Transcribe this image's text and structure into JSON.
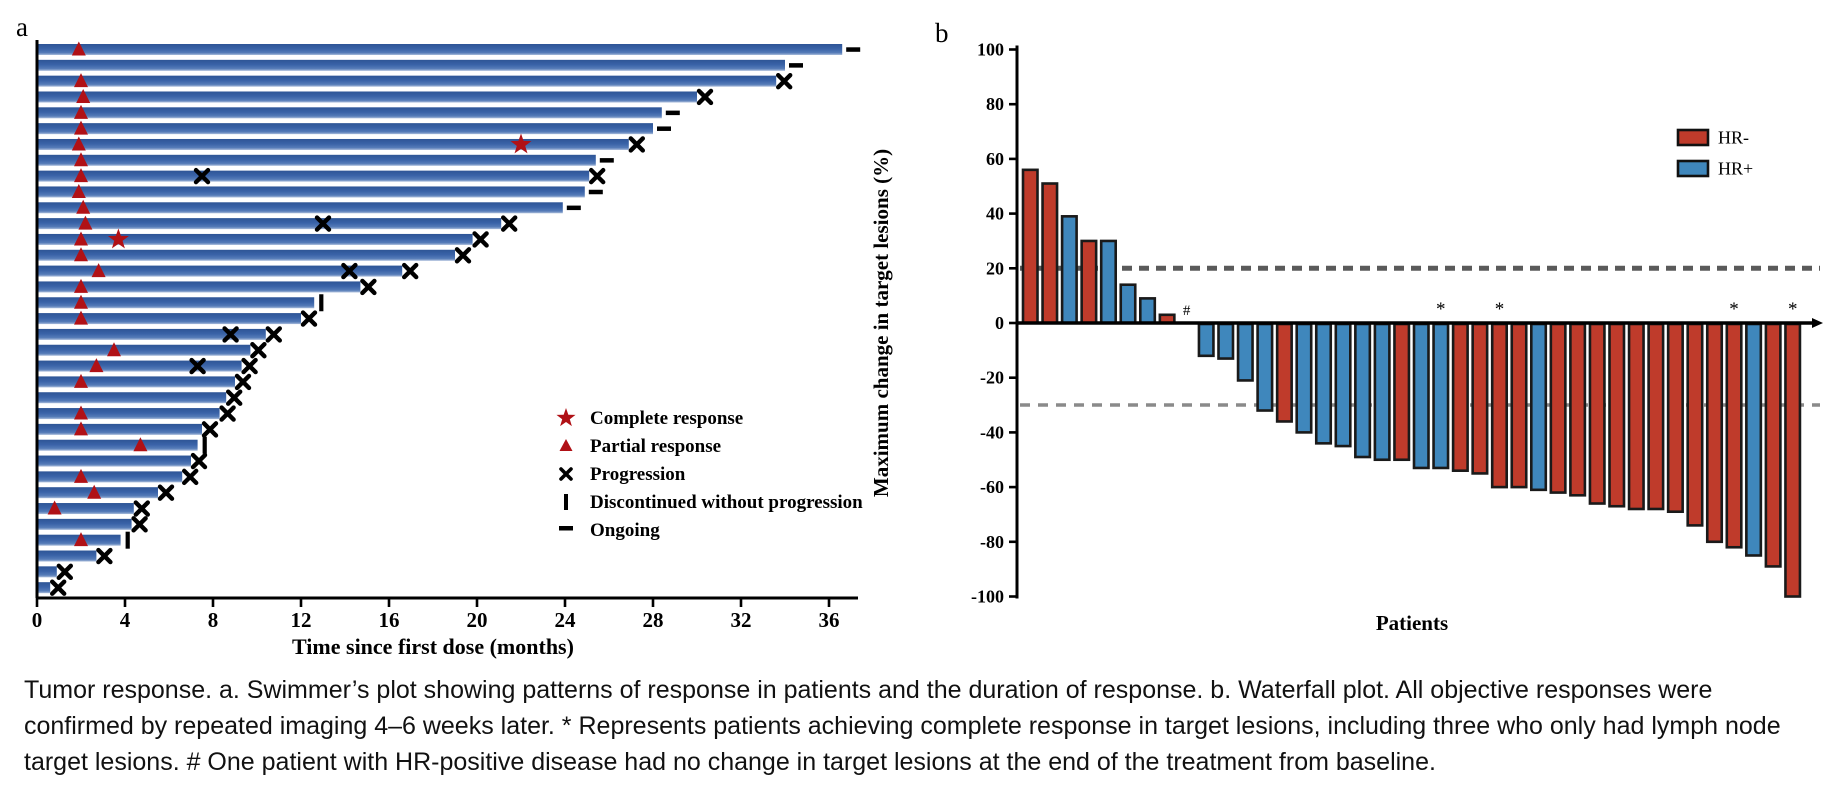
{
  "caption": "Tumor response. a. Swimmer’s plot showing patterns of response in patients and the duration of response. b. Waterfall plot. All objective responses were confirmed by repeated imaging 4–6 weeks later. * Represents patients achieving complete response in target lesions, including three who only had lymph node target lesions. # One patient with HR-positive disease had no change in target lesions at the end of the treatment from baseline.",
  "colors": {
    "swimmer_bar": "#3a62a8",
    "swimmer_bar_dark": "#2e5596",
    "swimmer_bar_light": "#a9bcdb",
    "response_marker_red": "#b01116",
    "progression_black": "#000000",
    "waterfall_hr_neg": "#bf3b2b",
    "waterfall_hr_pos": "#3f87bc",
    "bar_outline": "#1a1a1a",
    "ref_line_upper": "#5a5a5a",
    "ref_line_lower": "#8a8a8a"
  },
  "chart_data": [
    {
      "type": "swimmer",
      "panel_label": "a",
      "xlabel": "Time since first dose (months)",
      "xlim": [
        0,
        38
      ],
      "xticks": [
        0,
        4,
        8,
        12,
        16,
        20,
        24,
        28,
        32,
        36
      ],
      "grid": false,
      "legend_position": "center-right",
      "legend": [
        {
          "marker": "star",
          "label": "Complete response"
        },
        {
          "marker": "triangle",
          "label": "Partial response"
        },
        {
          "marker": "x",
          "label": "Progression"
        },
        {
          "marker": "vbar",
          "label": "Discontinued without progression"
        },
        {
          "marker": "dash",
          "label": "Ongoing"
        }
      ],
      "patients": [
        {
          "duration": 36.6,
          "partial_response_at": 1.9,
          "end": "ongoing"
        },
        {
          "duration": 34.0,
          "end": "ongoing"
        },
        {
          "duration": 33.6,
          "partial_response_at": 2.0,
          "end": "progression"
        },
        {
          "duration": 30.0,
          "partial_response_at": 2.1,
          "end": "progression"
        },
        {
          "duration": 28.4,
          "partial_response_at": 2.0,
          "end": "ongoing"
        },
        {
          "duration": 28.0,
          "partial_response_at": 2.0,
          "end": "ongoing"
        },
        {
          "duration": 26.9,
          "partial_response_at": 1.9,
          "complete_response_at": 22.0,
          "end": "progression"
        },
        {
          "duration": 25.4,
          "partial_response_at": 2.0,
          "end": "ongoing"
        },
        {
          "duration": 25.1,
          "partial_response_at": 2.0,
          "progression_at": [
            7.5
          ],
          "end": "progression"
        },
        {
          "duration": 24.9,
          "partial_response_at": 1.9,
          "end": "ongoing"
        },
        {
          "duration": 23.9,
          "partial_response_at": 2.1,
          "end": "ongoing"
        },
        {
          "duration": 21.1,
          "partial_response_at": 2.2,
          "progression_at": [
            13.0
          ],
          "end": "progression"
        },
        {
          "duration": 19.8,
          "partial_response_at": 2.0,
          "complete_response_at": 3.7,
          "end": "progression"
        },
        {
          "duration": 19.0,
          "partial_response_at": 2.0,
          "end": "progression"
        },
        {
          "duration": 16.6,
          "partial_response_at": 2.8,
          "progression_at": [
            14.2
          ],
          "end": "progression"
        },
        {
          "duration": 14.7,
          "partial_response_at": 2.0,
          "end": "progression"
        },
        {
          "duration": 12.6,
          "partial_response_at": 2.0,
          "end": "discontinued"
        },
        {
          "duration": 12.0,
          "partial_response_at": 2.0,
          "end": "progression"
        },
        {
          "duration": 10.4,
          "progression_at": [
            8.8
          ],
          "end": "progression"
        },
        {
          "duration": 9.7,
          "partial_response_at": 3.5,
          "end": "progression"
        },
        {
          "duration": 9.3,
          "partial_response_at": 2.7,
          "progression_at": [
            7.3
          ],
          "end": "progression"
        },
        {
          "duration": 9.0,
          "partial_response_at": 2.0,
          "end": "progression"
        },
        {
          "duration": 8.6,
          "end": "progression"
        },
        {
          "duration": 8.3,
          "partial_response_at": 2.0,
          "end": "progression"
        },
        {
          "duration": 7.5,
          "partial_response_at": 2.0,
          "end": "progression"
        },
        {
          "duration": 7.3,
          "partial_response_at": 4.7,
          "end": "discontinued"
        },
        {
          "duration": 7.0,
          "end": "progression"
        },
        {
          "duration": 6.6,
          "partial_response_at": 2.0,
          "end": "progression"
        },
        {
          "duration": 5.5,
          "partial_response_at": 2.6,
          "end": "progression"
        },
        {
          "duration": 4.4,
          "partial_response_at": 0.8,
          "end": "progression"
        },
        {
          "duration": 4.3,
          "end": "progression"
        },
        {
          "duration": 3.8,
          "partial_response_at": 2.0,
          "end": "discontinued"
        },
        {
          "duration": 2.7,
          "end": "progression"
        },
        {
          "duration": 0.9,
          "end": "progression"
        },
        {
          "duration": 0.6,
          "end": "progression"
        }
      ]
    },
    {
      "type": "bar",
      "subtype": "waterfall",
      "panel_label": "b",
      "xlabel": "Patients",
      "ylabel": "Maximum change in target lesions (%)",
      "ylim": [
        -100,
        100
      ],
      "yticks": [
        100,
        80,
        60,
        40,
        20,
        0,
        -20,
        -40,
        -60,
        -80,
        -100
      ],
      "reference_lines": [
        20,
        -30
      ],
      "grid": false,
      "legend_position": "upper-right",
      "legend": [
        {
          "label": "HR-",
          "group": "HR-"
        },
        {
          "label": "HR+",
          "group": "HR+"
        }
      ],
      "values": [
        {
          "value": 56,
          "group": "HR-"
        },
        {
          "value": 51,
          "group": "HR-"
        },
        {
          "value": 39,
          "group": "HR+"
        },
        {
          "value": 30,
          "group": "HR-"
        },
        {
          "value": 30,
          "group": "HR+"
        },
        {
          "value": 14,
          "group": "HR+"
        },
        {
          "value": 9,
          "group": "HR+"
        },
        {
          "value": 3,
          "group": "HR-"
        },
        {
          "value": 0,
          "group": "HR+",
          "annotation": "#"
        },
        {
          "value": -12,
          "group": "HR+"
        },
        {
          "value": -13,
          "group": "HR+"
        },
        {
          "value": -21,
          "group": "HR+"
        },
        {
          "value": -32,
          "group": "HR+"
        },
        {
          "value": -36,
          "group": "HR-"
        },
        {
          "value": -40,
          "group": "HR+"
        },
        {
          "value": -44,
          "group": "HR+"
        },
        {
          "value": -45,
          "group": "HR+"
        },
        {
          "value": -49,
          "group": "HR+"
        },
        {
          "value": -50,
          "group": "HR+"
        },
        {
          "value": -50,
          "group": "HR-"
        },
        {
          "value": -53,
          "group": "HR+"
        },
        {
          "value": -53,
          "group": "HR+",
          "annotation": "*"
        },
        {
          "value": -54,
          "group": "HR-"
        },
        {
          "value": -55,
          "group": "HR-"
        },
        {
          "value": -60,
          "group": "HR-",
          "annotation": "*"
        },
        {
          "value": -60,
          "group": "HR-"
        },
        {
          "value": -61,
          "group": "HR+"
        },
        {
          "value": -62,
          "group": "HR-"
        },
        {
          "value": -63,
          "group": "HR-"
        },
        {
          "value": -66,
          "group": "HR-"
        },
        {
          "value": -67,
          "group": "HR-"
        },
        {
          "value": -68,
          "group": "HR-"
        },
        {
          "value": -68,
          "group": "HR-"
        },
        {
          "value": -69,
          "group": "HR-"
        },
        {
          "value": -74,
          "group": "HR-"
        },
        {
          "value": -80,
          "group": "HR-"
        },
        {
          "value": -82,
          "group": "HR-",
          "annotation": "*"
        },
        {
          "value": -85,
          "group": "HR+"
        },
        {
          "value": -89,
          "group": "HR-"
        },
        {
          "value": -100,
          "group": "HR-",
          "annotation": "*"
        }
      ]
    }
  ]
}
